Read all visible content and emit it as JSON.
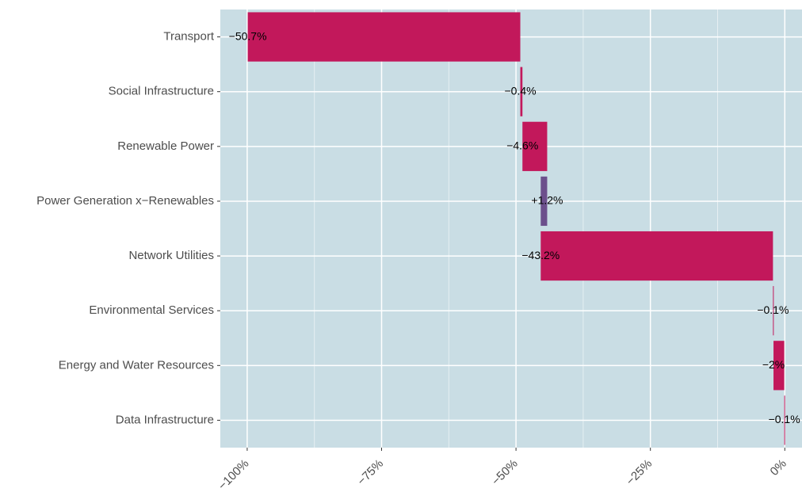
{
  "chart_data": {
    "type": "waterfall",
    "categories": [
      "Data Infrastructure",
      "Energy and Water Resources",
      "Environmental Services",
      "Network Utilities",
      "Power Generation x−Renewables",
      "Renewable Power",
      "Social Infrastructure",
      "Transport"
    ],
    "values": [
      -0.1,
      -2,
      -0.1,
      -43.2,
      1.2,
      -4.6,
      -0.4,
      -50.7
    ],
    "value_labels": [
      "−0.1%",
      "−2%",
      "−0.1%",
      "−43.2%",
      "+1.2%",
      "−4.6%",
      "−0.4%",
      "−50.7%"
    ],
    "negative_color": "#c2185b",
    "positive_color": "#6c4f8c",
    "xlim": [
      -105,
      3.2
    ],
    "xticks": [
      {
        "value": -100,
        "label": "−100%"
      },
      {
        "value": -75,
        "label": "−75%"
      },
      {
        "value": -50,
        "label": "−50%"
      },
      {
        "value": -25,
        "label": "−25%"
      },
      {
        "value": 0,
        "label": "0%"
      }
    ],
    "xminor": [
      -87.5,
      -62.5,
      -37.5,
      -12.5
    ],
    "grid": true
  }
}
